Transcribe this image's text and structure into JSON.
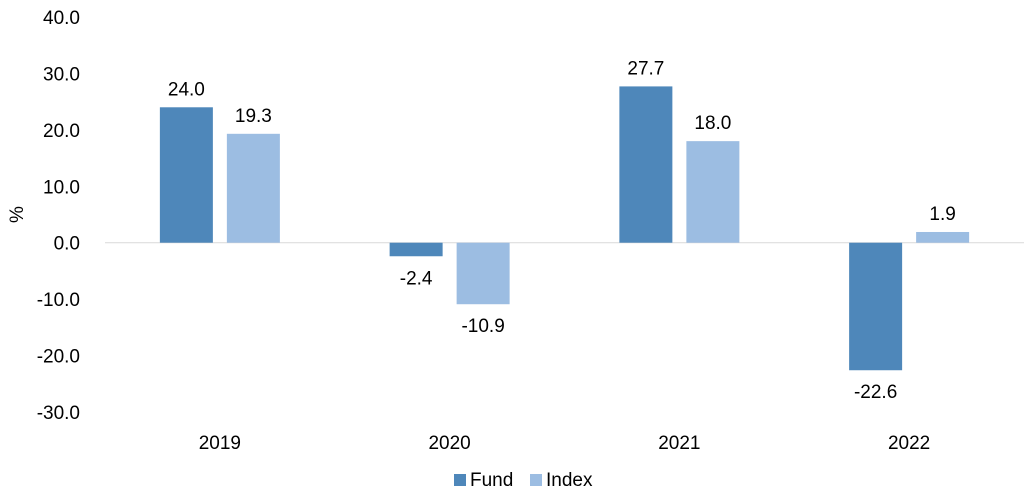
{
  "chart_data": {
    "type": "bar",
    "categories": [
      "2019",
      "2020",
      "2021",
      "2022"
    ],
    "series": [
      {
        "name": "Fund",
        "values": [
          24.0,
          -2.4,
          27.7,
          -22.6
        ],
        "color": "#4e87ba"
      },
      {
        "name": "Index",
        "values": [
          19.3,
          -10.9,
          18.0,
          1.9
        ],
        "color": "#9cbde2"
      }
    ],
    "ylabel": "%",
    "xlabel": "",
    "ylim": [
      -30,
      40
    ],
    "yticks": [
      40,
      30,
      20,
      10,
      0,
      -10,
      -20,
      -30
    ],
    "tick_format_decimals": 1,
    "grid": false,
    "zero_line": true,
    "legend_position": "bottom-center"
  }
}
